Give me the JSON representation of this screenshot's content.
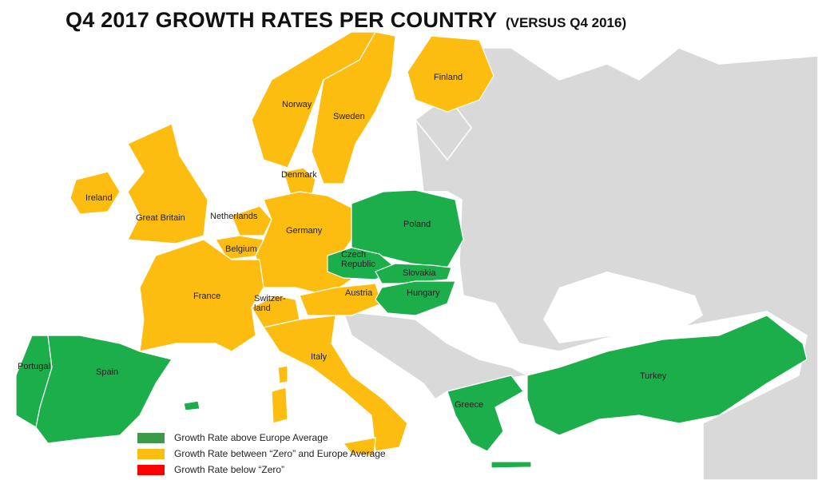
{
  "title": {
    "main": "Q4 2017 GROWTH RATES PER COUNTRY",
    "sub": "(VERSUS Q4 2016)"
  },
  "colors": {
    "above_avg": "#1bae4b",
    "between": "#fdbd10",
    "below_zero": "#ff0000",
    "other_land": "#d9d9d9",
    "sea": "#ffffff",
    "border": "#ffffff"
  },
  "legend": [
    {
      "label": "Growth Rate above Europe Average",
      "color": "#3e9a48"
    },
    {
      "label": "Growth Rate between “Zero” and Europe Average",
      "color": "#fdbd10"
    },
    {
      "label": "Growth Rate below “Zero”",
      "color": "#ff0000"
    }
  ],
  "countries": [
    {
      "name": "Finland",
      "category": "between"
    },
    {
      "name": "Norway",
      "category": "between"
    },
    {
      "name": "Sweden",
      "category": "between"
    },
    {
      "name": "Denmark",
      "category": "between"
    },
    {
      "name": "Ireland",
      "category": "between"
    },
    {
      "name": "Great Britain",
      "category": "between"
    },
    {
      "name": "Netherlands",
      "category": "between"
    },
    {
      "name": "Belgium",
      "category": "between"
    },
    {
      "name": "Germany",
      "category": "between"
    },
    {
      "name": "France",
      "category": "between"
    },
    {
      "name": "Switzer-\nland",
      "category": "between"
    },
    {
      "name": "Austria",
      "category": "between"
    },
    {
      "name": "Italy",
      "category": "between"
    },
    {
      "name": "Poland",
      "category": "above_avg"
    },
    {
      "name": "Czech\nRepublic",
      "category": "above_avg"
    },
    {
      "name": "Slovakia",
      "category": "above_avg"
    },
    {
      "name": "Hungary",
      "category": "above_avg"
    },
    {
      "name": "Portugal",
      "category": "above_avg"
    },
    {
      "name": "Spain",
      "category": "above_avg"
    },
    {
      "name": "Greece",
      "category": "above_avg"
    },
    {
      "name": "Turkey",
      "category": "above_avg"
    }
  ]
}
